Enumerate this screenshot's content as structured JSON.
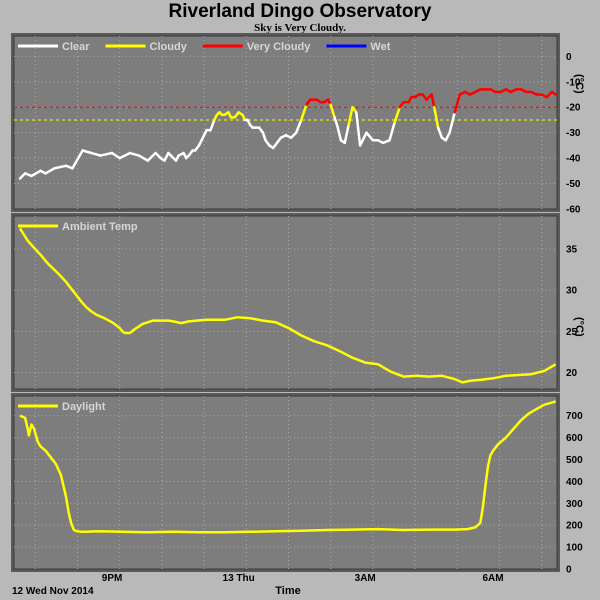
{
  "header": {
    "title": "Riverland Dingo Observatory",
    "subtitle": "Sky is Very Cloudy."
  },
  "chart_data": [
    {
      "type": "line",
      "ylabel": "(°C)",
      "ylim": [
        -60,
        8
      ],
      "yticks": [
        0,
        -10,
        -20,
        -30,
        -40,
        -50,
        -60
      ],
      "legend": [
        {
          "name": "Clear",
          "color": "#ffffff"
        },
        {
          "name": "Cloudy",
          "color": "#ffff00"
        },
        {
          "name": "Very Cloudy",
          "color": "#ff0000"
        },
        {
          "name": "Wet",
          "color": "#0000ff"
        }
      ],
      "thresholds": [
        {
          "value": -20,
          "color": "#ff0000"
        },
        {
          "value": -25,
          "color": "#ffff00"
        }
      ],
      "series": [
        {
          "x": [
            0,
            0.2,
            0.45,
            0.8,
            1.0,
            1.35,
            1.8,
            2.05,
            2.45,
            2.8,
            3.15,
            3.6,
            3.9,
            4.3,
            4.65,
            5.0,
            5.3,
            5.5,
            5.65,
            5.8,
            5.9,
            6.1,
            6.2,
            6.4,
            6.5,
            6.6,
            6.75,
            6.85,
            7.0,
            7.1,
            7.2,
            7.3,
            7.45,
            7.6,
            7.7,
            7.8,
            7.9,
            8.0,
            8.15,
            8.25,
            8.4,
            8.55,
            8.7,
            8.8,
            8.9,
            9.0,
            9.1,
            9.2,
            9.35,
            9.5,
            9.6,
            9.75,
            9.9,
            10.05,
            10.2,
            10.4,
            10.6,
            10.8,
            11.0,
            11.2,
            11.35,
            11.5,
            11.6,
            11.75,
            11.9,
            12.05,
            12.15,
            12.3,
            12.4,
            12.55,
            12.7,
            12.85,
            13.0,
            13.15,
            13.3,
            13.55,
            13.8,
            14.0,
            14.2,
            14.45,
            14.65,
            14.85,
            15.0,
            15.2,
            15.3,
            15.45,
            15.6,
            15.75,
            15.9,
            16.1,
            16.2,
            16.35,
            16.5,
            16.65,
            16.8,
            17.0,
            17.2,
            17.4,
            17.6,
            17.8,
            18.0,
            18.2,
            18.4,
            18.6,
            18.8,
            19.0,
            19.2,
            19.4,
            19.6,
            19.8,
            20.0,
            20.2,
            20.4,
            20.6,
            20.8,
            20.95
          ],
          "y": [
            -48,
            -46,
            -47,
            -45,
            -46,
            -44,
            -43,
            -44,
            -37,
            -38,
            -39,
            -38,
            -40,
            -38,
            -39,
            -41,
            -38,
            -40,
            -41,
            -38,
            -39,
            -41,
            -39,
            -38,
            -40,
            -39,
            -37,
            -37,
            -35,
            -33,
            -31,
            -29,
            -29,
            -25,
            -23,
            -22,
            -23,
            -23,
            -22,
            -24,
            -24,
            -22,
            -23,
            -25,
            -25,
            -27,
            -28,
            -28,
            -28,
            -30,
            -33,
            -35,
            -36,
            -34,
            -32,
            -31,
            -32,
            -30,
            -25,
            -19,
            -17,
            -17,
            -17,
            -18,
            -18,
            -17,
            -19,
            -24,
            -27,
            -33,
            -34,
            -27,
            -20,
            -22,
            -35,
            -30,
            -33,
            -33,
            -34,
            -33,
            -26,
            -20,
            -18,
            -18,
            -16,
            -16,
            -15,
            -15,
            -17,
            -15,
            -20,
            -28,
            -32,
            -33,
            -30,
            -22,
            -15,
            -14,
            -15,
            -14,
            -13,
            -13,
            -13,
            -14,
            -14,
            -13,
            -14,
            -13,
            -13,
            -14,
            -14,
            -15,
            -15,
            -16,
            -14,
            -15
          ]
        }
      ]
    },
    {
      "type": "line",
      "ylabel": "(°C)",
      "ylim": [
        18,
        39
      ],
      "yticks": [
        35,
        30,
        25,
        20
      ],
      "legend": [
        {
          "name": "Ambient Temp",
          "color": "#ffff00"
        }
      ],
      "series": [
        {
          "name": "Ambient Temp",
          "color": "#ffff00",
          "x": [
            0,
            0.1,
            0.3,
            0.5,
            0.8,
            1.1,
            1.5,
            1.8,
            2.1,
            2.4,
            2.6,
            2.8,
            3.0,
            3.3,
            3.6,
            3.9,
            4.0,
            4.1,
            4.3,
            4.5,
            4.8,
            5.0,
            5.2,
            5.5,
            5.8,
            6.0,
            6.3,
            6.6,
            6.9,
            7.3,
            7.7,
            8.0,
            8.5,
            9.0,
            9.5,
            10.0,
            10.5,
            11.0,
            11.5,
            12.0,
            12.5,
            13.0,
            13.5,
            14.0,
            14.5,
            15.0,
            15.5,
            16.0,
            16.5,
            17.0,
            17.3,
            17.6,
            18.0,
            18.5,
            19.0,
            19.5,
            20.0,
            20.5,
            20.95
          ],
          "y": [
            37.5,
            37,
            36,
            35.3,
            34.3,
            33.2,
            32,
            31,
            29.8,
            28.6,
            27.9,
            27.4,
            27,
            26.6,
            26.1,
            25.4,
            25,
            24.8,
            24.8,
            25.3,
            25.9,
            26.1,
            26.3,
            26.3,
            26.3,
            26.2,
            26,
            26.2,
            26.3,
            26.4,
            26.4,
            26.4,
            26.7,
            26.6,
            26.3,
            26.1,
            25.4,
            24.5,
            23.8,
            23.3,
            22.6,
            21.8,
            21.2,
            21,
            20.1,
            19.5,
            19.6,
            19.5,
            19.6,
            19.2,
            18.8,
            19,
            19.1,
            19.3,
            19.6,
            19.7,
            19.8,
            20.2,
            21
          ]
        }
      ]
    },
    {
      "type": "line",
      "ylim": [
        0,
        790
      ],
      "yticks": [
        700,
        600,
        500,
        400,
        300,
        200,
        100,
        0
      ],
      "legend": [
        {
          "name": "Daylight",
          "color": "#ffff00"
        }
      ],
      "series": [
        {
          "name": "Daylight",
          "color": "#ffff00",
          "x": [
            0,
            0.1,
            0.2,
            0.3,
            0.35,
            0.45,
            0.55,
            0.6,
            0.7,
            0.8,
            1.0,
            1.2,
            1.4,
            1.6,
            1.8,
            1.9,
            2.0,
            2.1,
            2.15,
            2.25,
            2.4,
            2.6,
            3.0,
            4.0,
            5.0,
            6.0,
            7.0,
            8.0,
            9.0,
            10.0,
            11.0,
            12.0,
            13.0,
            14.0,
            15.0,
            16.0,
            17.0,
            17.5,
            17.8,
            18.0,
            18.1,
            18.2,
            18.3,
            18.4,
            18.5,
            18.7,
            19.0,
            19.3,
            19.6,
            19.9,
            20.2,
            20.5,
            20.8,
            20.95
          ],
          "y": [
            700,
            695,
            690,
            640,
            610,
            660,
            640,
            620,
            580,
            560,
            540,
            510,
            480,
            430,
            330,
            260,
            210,
            180,
            175,
            172,
            170,
            170,
            172,
            170,
            168,
            170,
            168,
            168,
            170,
            172,
            175,
            178,
            180,
            182,
            178,
            180,
            180,
            182,
            190,
            210,
            280,
            380,
            470,
            520,
            540,
            570,
            600,
            640,
            680,
            710,
            730,
            750,
            760,
            765
          ]
        }
      ]
    }
  ],
  "x_axis": {
    "label": "Time",
    "date": "12 Wed Nov 2014",
    "ticks": [
      {
        "label": "9PM",
        "x": 3.6
      },
      {
        "label": "13 Thu",
        "x": 8.55
      },
      {
        "label": "3AM",
        "x": 13.5
      },
      {
        "label": "6AM",
        "x": 18.5
      }
    ],
    "xlim": [
      0,
      21
    ]
  },
  "colors": {
    "background": "#b9b9b9",
    "plot_bg": "#7d7d7d",
    "grid": "#a8a8a8"
  }
}
